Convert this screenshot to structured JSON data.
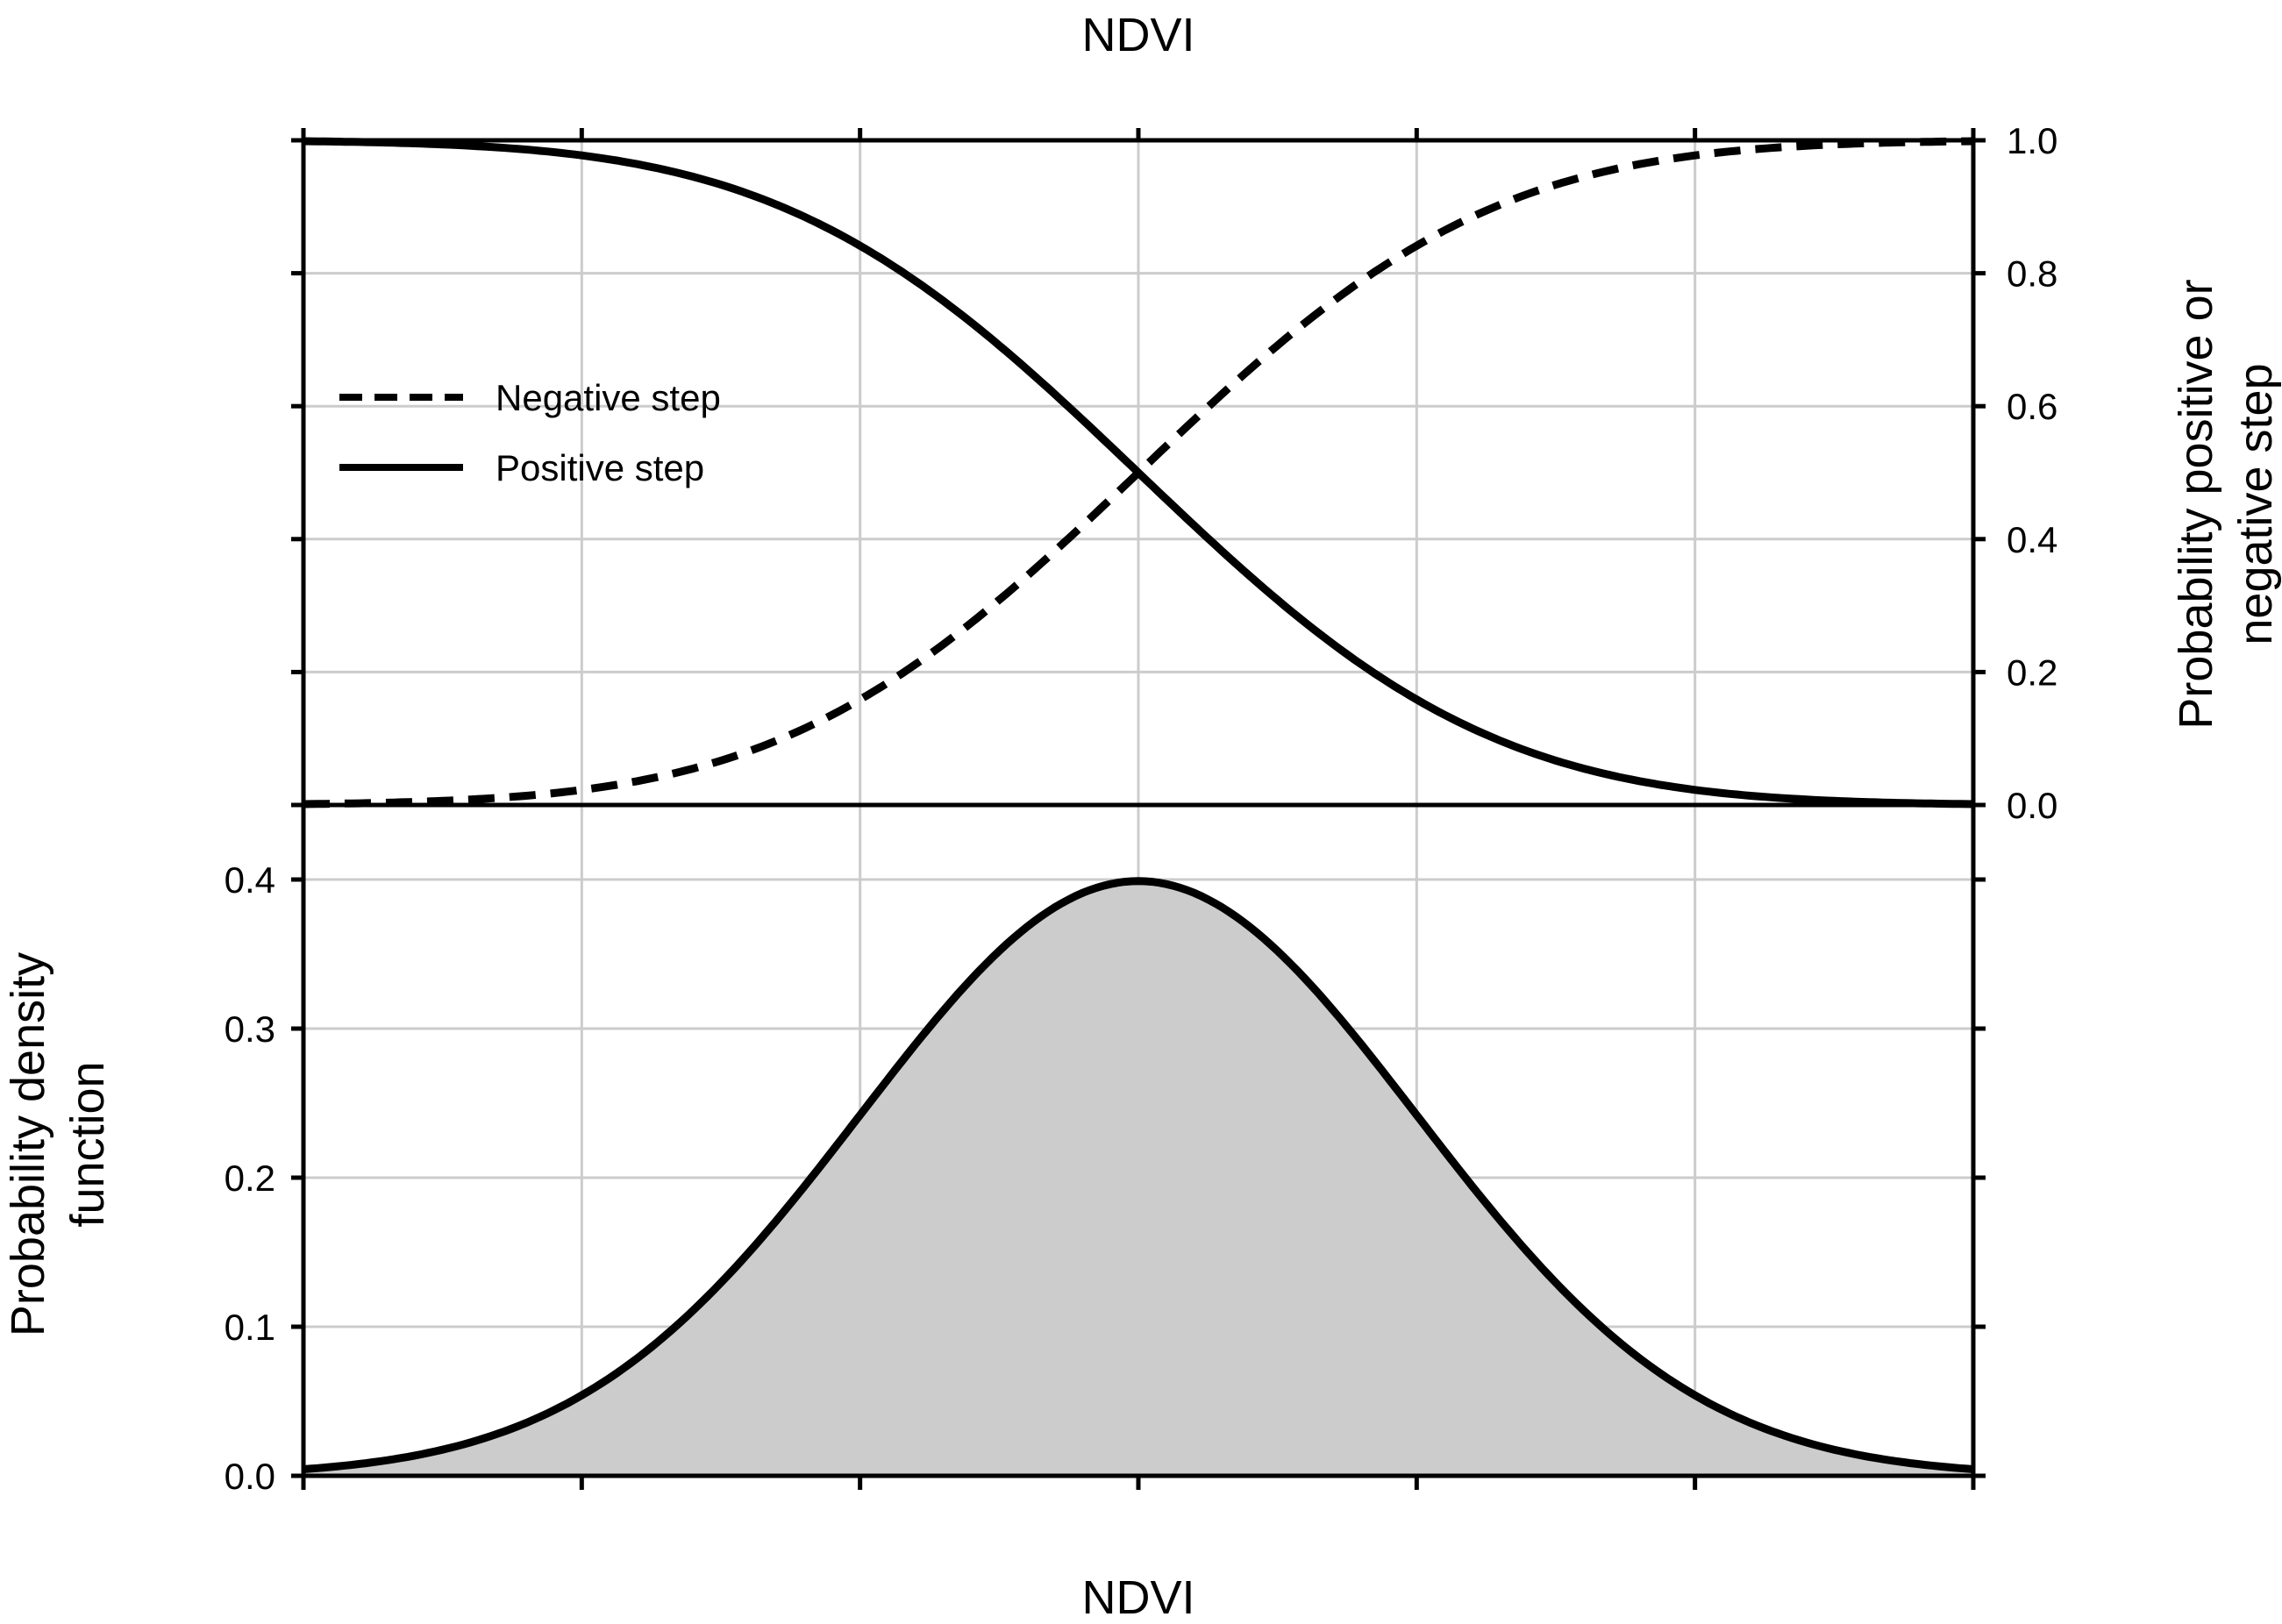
{
  "chart_data": [
    {
      "type": "line",
      "panel": "top",
      "title": "",
      "xlabel": "NDVI",
      "xlabel_position": "top",
      "ylabel": [
        "Probability positive or",
        "negative step"
      ],
      "ylabel_side": "right",
      "xlim": [
        -3,
        3
      ],
      "ylim": [
        0,
        1
      ],
      "yticks": [
        "0.0",
        "0.2",
        "0.4",
        "0.6",
        "0.8",
        "1.0"
      ],
      "grid": true,
      "legend_placement": "upper-left",
      "colors": {
        "line": "#000000",
        "grid": "#cccccc"
      },
      "series": [
        {
          "name": "Negative step",
          "style": "dashed",
          "x": [
            -3,
            -2.5,
            -2,
            -1.5,
            -1,
            -0.5,
            0,
            0.5,
            1,
            1.5,
            2,
            2.5,
            3
          ],
          "y": [
            0.001,
            0.006,
            0.023,
            0.067,
            0.159,
            0.309,
            0.5,
            0.691,
            0.841,
            0.933,
            0.977,
            0.994,
            0.999
          ]
        },
        {
          "name": "Positive step",
          "style": "solid",
          "x": [
            -3,
            -2.5,
            -2,
            -1.5,
            -1,
            -0.5,
            0,
            0.5,
            1,
            1.5,
            2,
            2.5,
            3
          ],
          "y": [
            0.999,
            0.994,
            0.977,
            0.933,
            0.841,
            0.691,
            0.5,
            0.309,
            0.159,
            0.067,
            0.023,
            0.006,
            0.001
          ]
        }
      ]
    },
    {
      "type": "area",
      "panel": "bottom",
      "title": "",
      "xlabel": "NDVI",
      "ylabel": [
        "Probability density",
        "function"
      ],
      "ylabel_side": "left",
      "xlim": [
        -3,
        3
      ],
      "ylim": [
        0,
        0.45
      ],
      "yticks": [
        "0.0",
        "0.1",
        "0.2",
        "0.3",
        "0.4"
      ],
      "grid": true,
      "colors": {
        "line": "#000000",
        "fill": "#cccccc",
        "grid": "#cccccc"
      },
      "series": [
        {
          "style": "solid-filled",
          "x": [
            -3,
            -2.5,
            -2,
            -1.5,
            -1,
            -0.5,
            0,
            0.5,
            1,
            1.5,
            2,
            2.5,
            3
          ],
          "y": [
            0.004,
            0.018,
            0.054,
            0.13,
            0.242,
            0.352,
            0.399,
            0.352,
            0.242,
            0.13,
            0.054,
            0.018,
            0.004
          ]
        }
      ]
    }
  ]
}
